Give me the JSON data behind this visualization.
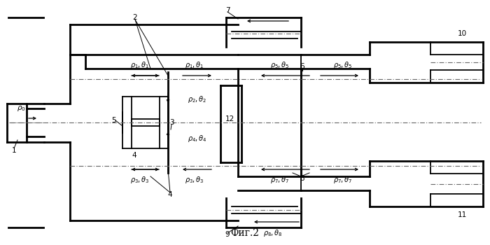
{
  "title": "Фиг.2",
  "bg": "#ffffff",
  "lc": "#000000",
  "lw": 1.3,
  "lw2": 2.0
}
